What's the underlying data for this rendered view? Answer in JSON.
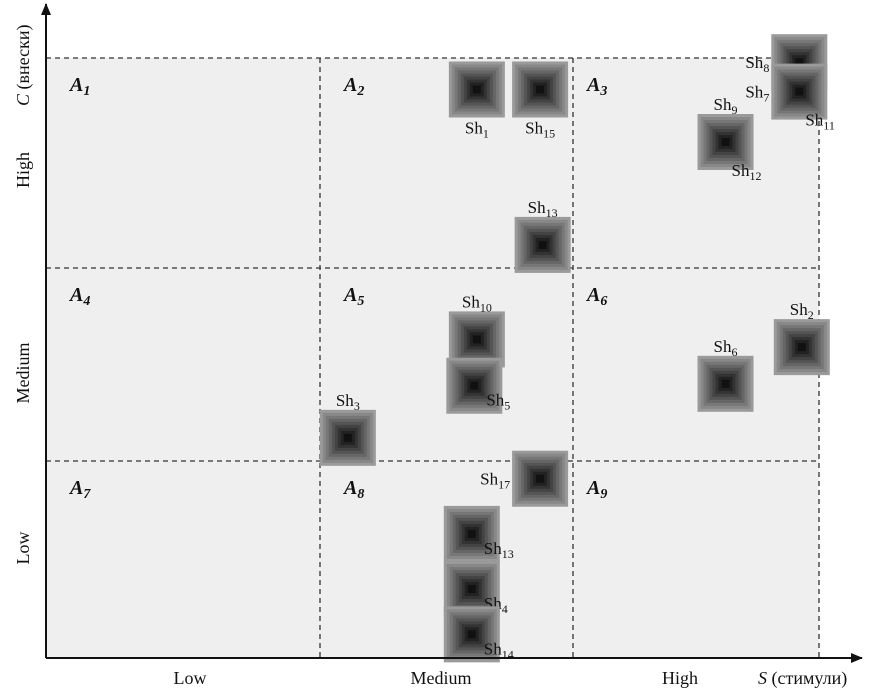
{
  "chart_data": {
    "type": "scatter",
    "axes": {
      "x": {
        "label_var": "S",
        "label_rest": " (стимули)",
        "ticks": [
          "Low",
          "Medium",
          "High"
        ]
      },
      "y": {
        "label_var": "C",
        "label_rest": " (внески)",
        "ticks": [
          "Low",
          "Medium",
          "High"
        ]
      }
    },
    "grid": "3x3 dashed",
    "cells": [
      {
        "id": "A",
        "sub": "1"
      },
      {
        "id": "A",
        "sub": "2"
      },
      {
        "id": "A",
        "sub": "3"
      },
      {
        "id": "A",
        "sub": "4"
      },
      {
        "id": "A",
        "sub": "5"
      },
      {
        "id": "A",
        "sub": "6"
      },
      {
        "id": "A",
        "sub": "7"
      },
      {
        "id": "A",
        "sub": "8"
      },
      {
        "id": "A",
        "sub": "9"
      }
    ],
    "xlim": [
      0,
      3
    ],
    "ylim": [
      0,
      3
    ],
    "points": [
      {
        "name": "Sh",
        "sub": "1",
        "x": 1.62,
        "y": 2.85,
        "label_pos": "below"
      },
      {
        "name": "Sh",
        "sub": "15",
        "x": 1.87,
        "y": 2.85,
        "label_pos": "below"
      },
      {
        "name": "Sh",
        "sub": "8",
        "x": 2.92,
        "y": 2.98,
        "label_pos": "left"
      },
      {
        "name": "Sh",
        "sub": "7",
        "x": 2.92,
        "y": 2.84,
        "label_pos": "left"
      },
      {
        "name": "Sh",
        "sub": "11",
        "x": 2.92,
        "y": 2.84,
        "label_pos": "below-right"
      },
      {
        "name": "Sh",
        "sub": "9",
        "x": 2.62,
        "y": 2.6,
        "label_pos": "above"
      },
      {
        "name": "Sh",
        "sub": "12",
        "x": 2.62,
        "y": 2.6,
        "label_pos": "below-right"
      },
      {
        "name": "Sh",
        "sub": "13",
        "x": 1.88,
        "y": 2.11,
        "label_pos": "above"
      },
      {
        "name": "Sh",
        "sub": "10",
        "x": 1.62,
        "y": 1.63,
        "label_pos": "above"
      },
      {
        "name": "Sh",
        "sub": "2",
        "x": 2.93,
        "y": 1.59,
        "label_pos": "above"
      },
      {
        "name": "Sh",
        "sub": "6",
        "x": 2.62,
        "y": 1.4,
        "label_pos": "above"
      },
      {
        "name": "Sh",
        "sub": "5",
        "x": 1.61,
        "y": 1.39,
        "label_pos": "right"
      },
      {
        "name": "Sh",
        "sub": "3",
        "x": 1.11,
        "y": 1.12,
        "label_pos": "above"
      },
      {
        "name": "Sh",
        "sub": "17",
        "x": 1.87,
        "y": 0.91,
        "label_pos": "left"
      },
      {
        "name": "Sh",
        "sub": "13",
        "x": 1.6,
        "y": 0.63,
        "label_pos": "right"
      },
      {
        "name": "Sh",
        "sub": "4",
        "x": 1.6,
        "y": 0.35,
        "label_pos": "right"
      },
      {
        "name": "Sh",
        "sub": "14",
        "x": 1.6,
        "y": 0.12,
        "label_pos": "right"
      }
    ]
  }
}
